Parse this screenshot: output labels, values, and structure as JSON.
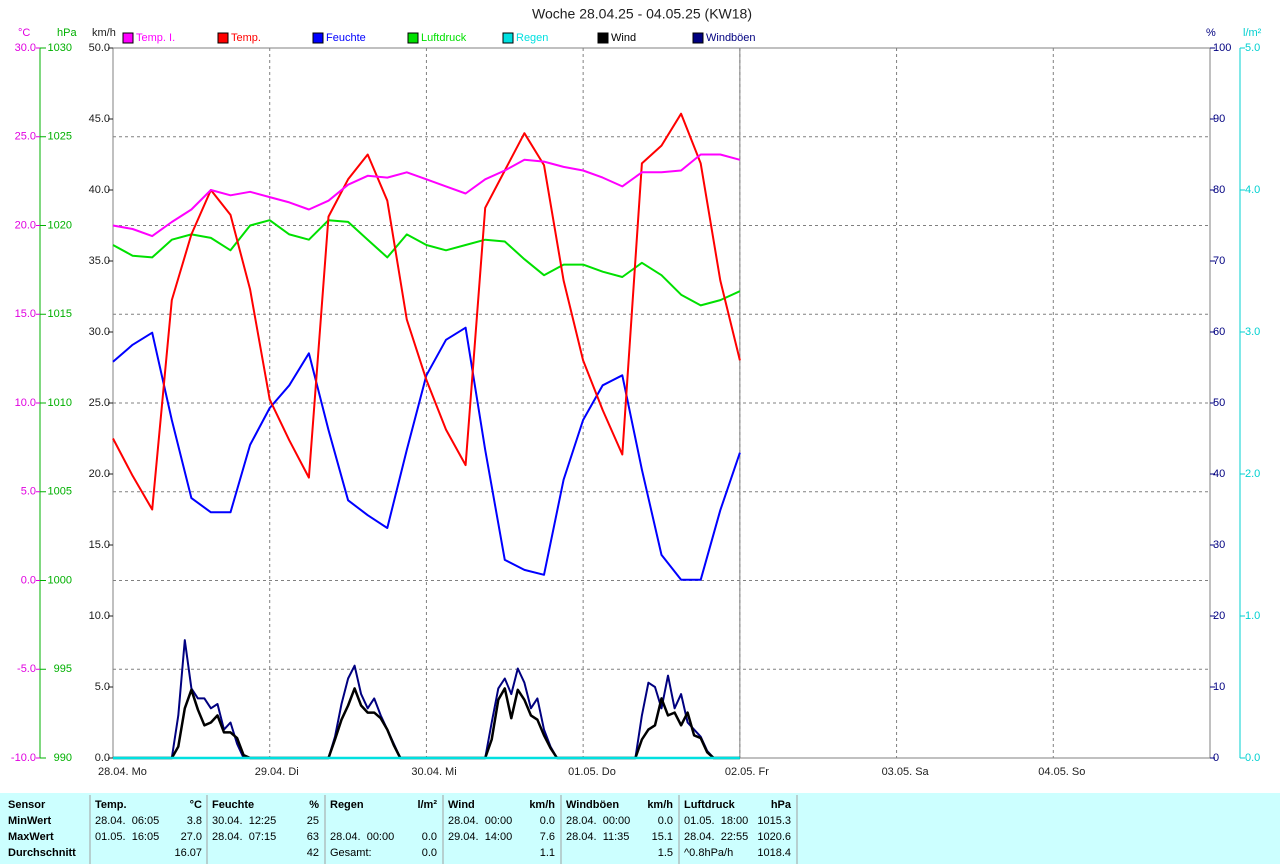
{
  "chart_data": {
    "type": "line",
    "title": "Woche 28.04.25 - 04.05.25 (KW18)",
    "x": [
      0,
      3,
      6,
      9,
      12,
      15,
      18,
      21,
      24,
      27,
      30,
      33,
      36,
      39,
      42,
      45,
      48,
      51,
      54,
      57,
      60,
      63,
      66,
      69,
      72,
      75,
      78,
      81,
      84,
      87,
      90,
      93,
      96
    ],
    "xlim": [
      0,
      168
    ],
    "xticks": [
      {
        "value": 0,
        "label": "28.04. Mo"
      },
      {
        "value": 24,
        "label": "29.04. Di"
      },
      {
        "value": 48,
        "label": "30.04. Mi"
      },
      {
        "value": 72,
        "label": "01.05. Do"
      },
      {
        "value": 96,
        "label": "02.05. Fr"
      },
      {
        "value": 120,
        "label": "03.05. Sa"
      },
      {
        "value": 144,
        "label": "04.05. So"
      }
    ],
    "grid": true,
    "axes": {
      "temp": {
        "unit": "°C",
        "color": "#e000e0",
        "lim": [
          -10,
          30
        ],
        "ticks": [
          {
            "value": -10,
            "label": "-10.0"
          },
          {
            "value": -5,
            "label": "-5.0"
          },
          {
            "value": 0,
            "label": "0.0"
          },
          {
            "value": 5,
            "label": "5.0"
          },
          {
            "value": 10,
            "label": "10.0"
          },
          {
            "value": 15,
            "label": "15.0"
          },
          {
            "value": 20,
            "label": "20.0"
          },
          {
            "value": 25,
            "label": "25.0"
          },
          {
            "value": 30,
            "label": "30.0"
          }
        ]
      },
      "pressure": {
        "unit": "hPa",
        "color": "#00b000",
        "lim": [
          990,
          1030
        ],
        "ticks": [
          990,
          995,
          1000,
          1005,
          1010,
          1015,
          1020,
          1025,
          1030
        ]
      },
      "wind": {
        "unit": "km/h",
        "color": "#202020",
        "lim": [
          0,
          50
        ],
        "ticks": [
          {
            "value": 0,
            "label": "0.0"
          },
          {
            "value": 5,
            "label": "5.0"
          },
          {
            "value": 10,
            "label": "10.0"
          },
          {
            "value": 15,
            "label": "15.0"
          },
          {
            "value": 20,
            "label": "20.0"
          },
          {
            "value": 25,
            "label": "25.0"
          },
          {
            "value": 30,
            "label": "30.0"
          },
          {
            "value": 35,
            "label": "35.0"
          },
          {
            "value": 40,
            "label": "40.0"
          },
          {
            "value": 45,
            "label": "45.0"
          },
          {
            "value": 50,
            "label": "50.0"
          }
        ]
      },
      "humidity": {
        "unit": "%",
        "color": "#000080",
        "lim": [
          0,
          100
        ],
        "ticks": [
          0,
          10,
          20,
          30,
          40,
          50,
          60,
          70,
          80,
          90,
          100
        ]
      },
      "rain": {
        "unit": "l/m²",
        "color": "#00d0d0",
        "lim": [
          0,
          5
        ],
        "ticks": [
          {
            "value": 0,
            "label": "0.0"
          },
          {
            "value": 1,
            "label": "1.0"
          },
          {
            "value": 2,
            "label": "2.0"
          },
          {
            "value": 3,
            "label": "3.0"
          },
          {
            "value": 4,
            "label": "4.0"
          },
          {
            "value": 5,
            "label": "5.0"
          }
        ]
      }
    },
    "series": [
      {
        "name": "Temp. I.",
        "color": "#ff00ff",
        "axis": "temp",
        "values": [
          20.0,
          19.8,
          19.4,
          20.2,
          20.9,
          22.0,
          21.7,
          21.9,
          21.6,
          21.3,
          20.9,
          21.4,
          22.3,
          22.8,
          22.7,
          23.0,
          22.6,
          22.2,
          21.8,
          22.6,
          23.1,
          23.7,
          23.6,
          23.3,
          23.1,
          22.7,
          22.2,
          23.0,
          23.0,
          23.1,
          24.0,
          24.0,
          23.7
        ]
      },
      {
        "name": "Temp.",
        "color": "#ff0000",
        "axis": "temp",
        "values": [
          8.0,
          5.9,
          4.0,
          15.8,
          19.5,
          22.0,
          20.6,
          16.4,
          10.2,
          7.9,
          5.8,
          20.5,
          22.6,
          24.0,
          21.4,
          14.7,
          11.3,
          8.5,
          6.5,
          21.0,
          23.1,
          25.2,
          23.4,
          16.9,
          12.4,
          9.6,
          7.1,
          23.5,
          24.5,
          26.3,
          23.5,
          16.9,
          12.4
        ]
      },
      {
        "name": "Feuchte",
        "color": "#0000ff",
        "axis": "humidity",
        "values": [
          55.8,
          58.2,
          59.9,
          47.6,
          36.6,
          34.6,
          34.6,
          44.1,
          49.3,
          52.5,
          57.0,
          46.2,
          36.3,
          34.2,
          32.4,
          43.4,
          53.9,
          58.9,
          60.6,
          43.4,
          27.9,
          26.5,
          25.8,
          39.2,
          47.6,
          52.5,
          53.9,
          40.6,
          28.6,
          25.1,
          25.1,
          34.9,
          43.0
        ]
      },
      {
        "name": "Luftdruck",
        "color": "#00e000",
        "axis": "pressure",
        "values": [
          1018.9,
          1018.3,
          1018.2,
          1019.2,
          1019.5,
          1019.3,
          1018.6,
          1020.0,
          1020.3,
          1019.5,
          1019.2,
          1020.3,
          1020.2,
          1019.2,
          1018.2,
          1019.5,
          1018.9,
          1018.6,
          1018.9,
          1019.2,
          1019.1,
          1018.1,
          1017.2,
          1017.8,
          1017.8,
          1017.4,
          1017.1,
          1017.9,
          1017.2,
          1016.1,
          1015.5,
          1015.8,
          1016.3
        ]
      },
      {
        "name": "Regen",
        "color": "#00e0e0",
        "axis": "rain",
        "values": [
          0,
          0,
          0,
          0,
          0,
          0,
          0,
          0,
          0,
          0,
          0,
          0,
          0,
          0,
          0,
          0,
          0,
          0,
          0,
          0,
          0,
          0,
          0,
          0,
          0,
          0,
          0,
          0,
          0,
          0,
          0,
          0,
          0
        ]
      },
      {
        "name": "Wind",
        "color": "#000000",
        "axis": "wind",
        "x": [
          0,
          1,
          2,
          3,
          4,
          5,
          6,
          7,
          8,
          9,
          10,
          11,
          12,
          13,
          14,
          15,
          16,
          17,
          18,
          19,
          20,
          21,
          22,
          23,
          24,
          25,
          26,
          27,
          28,
          29,
          30,
          31,
          32,
          33,
          34,
          35,
          36,
          37,
          38,
          39,
          40,
          41,
          42,
          43,
          44,
          45,
          46,
          47,
          48,
          49,
          50,
          51,
          52,
          53,
          54,
          55,
          56,
          57,
          58,
          59,
          60,
          61,
          62,
          63,
          64,
          65,
          66,
          67,
          68,
          69,
          70,
          71,
          72,
          73,
          74,
          75,
          76,
          77,
          78,
          79,
          80,
          81,
          82,
          83,
          84,
          85,
          86,
          87,
          88,
          89,
          90,
          91,
          92,
          93,
          94,
          95,
          96
        ],
        "values": [
          0,
          0,
          0,
          0,
          0,
          0,
          0,
          0,
          0,
          0,
          0.8,
          3.5,
          4.8,
          3.4,
          2.3,
          2.5,
          3.0,
          1.8,
          1.8,
          1.4,
          0.2,
          0,
          0,
          0,
          0,
          0,
          0,
          0,
          0,
          0,
          0,
          0,
          0,
          0,
          1.3,
          2.7,
          3.7,
          4.9,
          3.7,
          3.2,
          3.2,
          2.8,
          2.0,
          0.9,
          0,
          0,
          0,
          0,
          0,
          0,
          0,
          0,
          0,
          0,
          0,
          0,
          0,
          0,
          1.3,
          4.1,
          4.9,
          2.8,
          4.8,
          4.1,
          3.0,
          2.7,
          1.6,
          0.7,
          0,
          0,
          0,
          0,
          0,
          0,
          0,
          0,
          0,
          0,
          0,
          0,
          0,
          1.3,
          2.0,
          2.3,
          4.2,
          3.0,
          3.2,
          2.3,
          3.2,
          1.6,
          1.4,
          0.4,
          0,
          0,
          0,
          0,
          0
        ]
      },
      {
        "name": "Windböen",
        "color": "#000080",
        "axis": "wind",
        "x": [
          0,
          1,
          2,
          3,
          4,
          5,
          6,
          7,
          8,
          9,
          10,
          11,
          12,
          13,
          14,
          15,
          16,
          17,
          18,
          19,
          20,
          21,
          22,
          23,
          24,
          25,
          26,
          27,
          28,
          29,
          30,
          31,
          32,
          33,
          34,
          35,
          36,
          37,
          38,
          39,
          40,
          41,
          42,
          43,
          44,
          45,
          46,
          47,
          48,
          49,
          50,
          51,
          52,
          53,
          54,
          55,
          56,
          57,
          58,
          59,
          60,
          61,
          62,
          63,
          64,
          65,
          66,
          67,
          68,
          69,
          70,
          71,
          72,
          73,
          74,
          75,
          76,
          77,
          78,
          79,
          80,
          81,
          82,
          83,
          84,
          85,
          86,
          87,
          88,
          89,
          90,
          91,
          92,
          93,
          94,
          95,
          96
        ],
        "values": [
          0,
          0,
          0,
          0,
          0,
          0,
          0,
          0,
          0,
          0,
          3.0,
          8.3,
          4.9,
          4.2,
          4.2,
          3.5,
          3.8,
          2.0,
          2.5,
          1.0,
          0,
          0,
          0,
          0,
          0,
          0,
          0,
          0,
          0,
          0,
          0,
          0,
          0,
          0,
          1.5,
          3.8,
          5.6,
          6.5,
          4.5,
          3.5,
          4.2,
          3.0,
          2.0,
          1.0,
          0,
          0,
          0,
          0,
          0,
          0,
          0,
          0,
          0,
          0,
          0,
          0,
          0,
          0,
          2.5,
          4.9,
          5.6,
          4.5,
          6.3,
          5.3,
          3.5,
          4.2,
          2.0,
          0.8,
          0,
          0,
          0,
          0,
          0,
          0,
          0,
          0,
          0,
          0,
          0,
          0,
          0,
          3.0,
          5.3,
          5.0,
          3.5,
          5.8,
          3.5,
          4.5,
          2.5,
          2.0,
          1.5,
          0.5,
          0,
          0,
          0,
          0,
          0
        ]
      }
    ]
  },
  "table": {
    "row_labels": [
      "Sensor",
      "MinWert",
      "MaxWert",
      "Durchschnitt"
    ],
    "columns": [
      {
        "name": "Temp.",
        "unit": "°C",
        "cells": [
          [
            "28.04.  06:05",
            "3.8"
          ],
          [
            "01.05.  16:05",
            "27.0"
          ],
          [
            null,
            "16.07"
          ]
        ]
      },
      {
        "name": "Feuchte",
        "unit": "%",
        "cells": [
          [
            "30.04.  12:25",
            "25"
          ],
          [
            "28.04.  07:15",
            "63"
          ],
          [
            null,
            "42"
          ]
        ]
      },
      {
        "name": "Regen",
        "unit": "l/m²",
        "cells": [
          [
            null,
            null
          ],
          [
            "28.04.  00:00",
            "0.0"
          ],
          [
            "Gesamt:",
            "0.0"
          ]
        ]
      },
      {
        "name": "Wind",
        "unit": "km/h",
        "cells": [
          [
            "28.04.  00:00",
            "0.0"
          ],
          [
            "29.04.  14:00",
            "7.6"
          ],
          [
            null,
            "1.1"
          ]
        ]
      },
      {
        "name": "Windböen",
        "unit": "km/h",
        "cells": [
          [
            "28.04.  00:00",
            "0.0"
          ],
          [
            "28.04.  11:35",
            "15.1"
          ],
          [
            null,
            "1.5"
          ]
        ]
      },
      {
        "name": "Luftdruck",
        "unit": "hPa",
        "cells": [
          [
            "01.05.  18:00",
            "1015.3"
          ],
          [
            "28.04.  22:55",
            "1020.6"
          ],
          [
            "^0.8hPa/h",
            "1018.4"
          ]
        ]
      }
    ]
  }
}
